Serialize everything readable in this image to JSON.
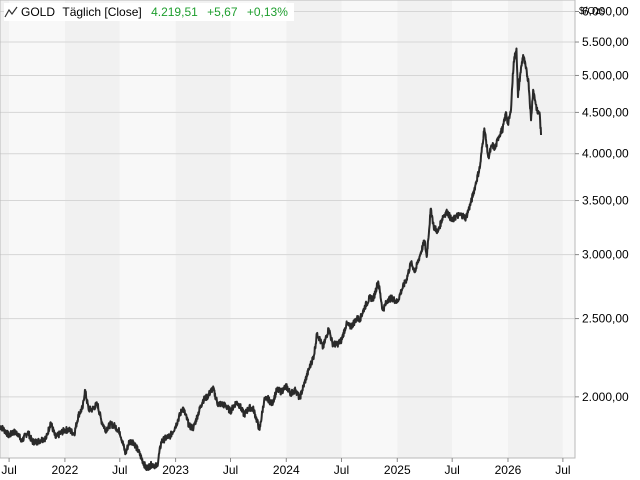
{
  "legend": {
    "symbol": "GOLD",
    "period": "Täglich [Close]",
    "last": "4.219,51",
    "change": "+5,67",
    "change_pct": "+0,13%",
    "positive_color": "#1e9e2e"
  },
  "chart_data": {
    "type": "line",
    "series": [
      {
        "x": [
          "2021-06-01",
          "2021-06-15",
          "2021-07-01",
          "2021-07-15",
          "2021-08-01",
          "2021-08-10",
          "2021-09-01",
          "2021-09-15",
          "2021-10-01",
          "2021-10-15",
          "2021-11-01",
          "2021-11-15",
          "2021-12-01",
          "2021-12-15",
          "2022-01-01",
          "2022-01-15",
          "2022-02-01",
          "2022-02-15",
          "2022-03-01",
          "2022-03-08",
          "2022-03-20",
          "2022-04-01",
          "2022-04-18",
          "2022-05-01",
          "2022-05-15",
          "2022-06-01",
          "2022-06-15",
          "2022-07-01",
          "2022-07-20",
          "2022-08-01",
          "2022-08-15",
          "2022-09-01",
          "2022-09-26",
          "2022-10-15",
          "2022-11-01",
          "2022-11-15",
          "2022-12-01",
          "2022-12-15",
          "2023-01-01",
          "2023-01-25",
          "2023-02-15",
          "2023-03-01",
          "2023-03-15",
          "2023-04-01",
          "2023-04-15",
          "2023-05-04",
          "2023-05-20",
          "2023-06-01",
          "2023-06-15",
          "2023-07-01",
          "2023-07-20",
          "2023-08-01",
          "2023-08-15",
          "2023-09-01",
          "2023-09-15",
          "2023-10-05",
          "2023-10-20",
          "2023-11-01",
          "2023-11-15",
          "2023-12-01",
          "2023-12-15",
          "2024-01-01",
          "2024-01-15",
          "2024-02-01",
          "2024-02-14",
          "2024-03-01",
          "2024-03-15",
          "2024-04-01",
          "2024-04-12",
          "2024-05-01",
          "2024-05-20",
          "2024-06-01",
          "2024-06-15",
          "2024-07-01",
          "2024-07-17",
          "2024-08-01",
          "2024-08-20",
          "2024-09-01",
          "2024-09-15",
          "2024-10-01",
          "2024-10-15",
          "2024-10-30",
          "2024-11-14",
          "2024-12-01",
          "2024-12-15",
          "2025-01-01",
          "2025-01-15",
          "2025-02-01",
          "2025-02-15",
          "2025-03-01",
          "2025-03-15",
          "2025-04-01",
          "2025-04-08",
          "2025-04-22",
          "2025-05-01",
          "2025-05-15",
          "2025-06-01",
          "2025-06-15",
          "2025-07-01",
          "2025-07-15",
          "2025-08-01",
          "2025-08-15",
          "2025-09-01",
          "2025-09-15",
          "2025-10-01",
          "2025-10-15",
          "2025-10-28",
          "2025-11-10",
          "2025-11-20",
          "2025-12-01",
          "2025-12-15",
          "2025-12-26",
          "2026-01-01",
          "2026-01-10",
          "2026-01-20",
          "2026-01-29",
          "2026-02-03",
          "2026-02-10",
          "2026-02-20",
          "2026-03-01",
          "2026-03-10",
          "2026-03-18",
          "2026-03-25",
          "2026-04-01",
          "2026-04-08",
          "2026-04-15",
          "2026-04-20"
        ],
        "y": [
          1840,
          1820,
          1790,
          1810,
          1800,
          1760,
          1810,
          1760,
          1760,
          1770,
          1780,
          1860,
          1780,
          1800,
          1820,
          1820,
          1800,
          1900,
          1940,
          2040,
          1930,
          1930,
          1960,
          1870,
          1820,
          1850,
          1840,
          1810,
          1700,
          1760,
          1760,
          1710,
          1630,
          1650,
          1640,
          1760,
          1780,
          1790,
          1840,
          1940,
          1840,
          1830,
          1900,
          1980,
          2000,
          2050,
          1960,
          1960,
          1950,
          1920,
          1970,
          1950,
          1900,
          1940,
          1930,
          1820,
          1980,
          1990,
          1960,
          2040,
          2030,
          2060,
          2020,
          2040,
          1990,
          2080,
          2160,
          2250,
          2400,
          2300,
          2430,
          2330,
          2320,
          2350,
          2460,
          2440,
          2500,
          2500,
          2580,
          2650,
          2650,
          2780,
          2560,
          2640,
          2650,
          2620,
          2710,
          2800,
          2930,
          2860,
          2980,
          3120,
          2980,
          3420,
          3250,
          3200,
          3350,
          3390,
          3300,
          3350,
          3360,
          3330,
          3480,
          3650,
          3860,
          4300,
          3960,
          4100,
          4060,
          4200,
          4300,
          4500,
          4350,
          4500,
          5200,
          5400,
          4700,
          5000,
          5300,
          5100,
          4900,
          4400,
          4800,
          4650,
          4500,
          4500,
          4219
        ]
      }
    ],
    "ylim": [
      1680,
      6200
    ],
    "y_scale": "log",
    "y_ticks": [
      2000,
      2500,
      3000,
      3500,
      4000,
      4500,
      5000,
      5500,
      6000
    ],
    "y_tick_labels": [
      "2.000,00",
      "2.500,00",
      "3.000,00",
      "3.500,00",
      "4.000,00",
      "4.500,00",
      "5.000,00",
      "5.500,00",
      "6.000,00"
    ],
    "xlim": [
      "2021-06-01",
      "2026-08-10"
    ],
    "x_ticks": [
      "2021-07-01",
      "2022-01-01",
      "2022-07-01",
      "2023-01-01",
      "2023-07-01",
      "2024-01-01",
      "2024-07-01",
      "2025-01-01",
      "2025-07-01",
      "2026-01-01",
      "2026-07-01"
    ],
    "x_tick_labels": [
      "Jul",
      "2022",
      "Jul",
      "2023",
      "Jul",
      "2024",
      "Jul",
      "2025",
      "Jul",
      "2026",
      "Jul"
    ],
    "ylabel": "$/Ozs",
    "grid": true,
    "line_color": "#2a2a2a"
  }
}
